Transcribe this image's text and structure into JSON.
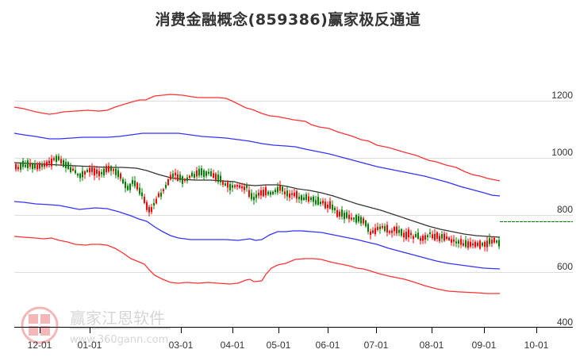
{
  "title": "消费金融概念(859386)赢家极反通道",
  "watermark": {
    "brand": "赢家江恩软件",
    "url": "www.360gann.com",
    "logo_chars": [
      "江",
      "赢",
      "恩",
      "家"
    ]
  },
  "colors": {
    "up_candle": "#ff0000",
    "down_candle": "#008000",
    "outer_band": "#ff3333",
    "inner_band": "#3333ff",
    "mid_line": "#333333",
    "last_price_line": "#008000",
    "grid": "#dddddd",
    "axis": "#000000"
  },
  "chart_data": {
    "type": "candlestick",
    "title": "消费金融概念(859386)赢家极反通道",
    "xlabel": "",
    "ylabel": "",
    "y_axis_position": "right",
    "ylim": [
      400,
      1250
    ],
    "yticks": [
      1200,
      1000,
      800,
      600,
      400
    ],
    "xticks": [
      "12-01",
      "01-01",
      "03-01",
      "04-01",
      "05-01",
      "06-01",
      "07-01",
      "08-01",
      "09-01",
      "10-01"
    ],
    "grid": true,
    "legend": null,
    "series": [
      {
        "name": "outer_upper_band",
        "color": "#ff3333",
        "x": [
          "11-10",
          "12-01",
          "12-20",
          "01-01",
          "01-20",
          "02-10",
          "02-20",
          "03-01",
          "03-15",
          "04-01",
          "04-15",
          "05-01",
          "05-15",
          "06-01",
          "06-15",
          "07-01",
          "07-15",
          "08-01",
          "08-15",
          "09-01",
          "09-15"
        ],
        "values": [
          1175,
          1160,
          1150,
          1160,
          1165,
          1195,
          1200,
          1220,
          1220,
          1210,
          1200,
          1150,
          1130,
          1100,
          1080,
          1060,
          1030,
          1000,
          985,
          960,
          945
        ]
      },
      {
        "name": "inner_upper_band",
        "color": "#3333ff",
        "x": [
          "11-10",
          "12-01",
          "12-20",
          "01-01",
          "01-20",
          "02-10",
          "02-20",
          "03-01",
          "03-15",
          "04-01",
          "04-15",
          "05-01",
          "05-15",
          "06-01",
          "06-15",
          "07-01",
          "07-15",
          "08-01",
          "08-15",
          "09-01",
          "09-15"
        ],
        "values": [
          1080,
          1065,
          1055,
          1060,
          1065,
          1065,
          1070,
          1078,
          1078,
          1065,
          1050,
          1025,
          1010,
          985,
          965,
          945,
          920,
          890,
          870,
          850,
          833
        ]
      },
      {
        "name": "middle_line",
        "color": "#333333",
        "x": [
          "11-10",
          "12-01",
          "12-20",
          "01-01",
          "01-20",
          "02-10",
          "02-20",
          "03-01",
          "03-15",
          "04-01",
          "04-15",
          "05-01",
          "05-15",
          "06-01",
          "06-15",
          "07-01",
          "07-15",
          "08-01",
          "08-15",
          "09-01",
          "09-15"
        ],
        "values": [
          980,
          970,
          962,
          960,
          958,
          955,
          945,
          925,
          920,
          918,
          905,
          910,
          900,
          880,
          860,
          840,
          815,
          790,
          775,
          757,
          750
        ]
      },
      {
        "name": "inner_lower_band",
        "color": "#3333ff",
        "x": [
          "11-10",
          "12-01",
          "12-20",
          "01-01",
          "01-20",
          "02-10",
          "02-20",
          "03-01",
          "03-15",
          "04-01",
          "04-15",
          "05-01",
          "05-15",
          "06-01",
          "06-15",
          "07-01",
          "07-15",
          "08-01",
          "08-15",
          "09-01",
          "09-15"
        ],
        "values": [
          840,
          830,
          818,
          815,
          800,
          750,
          720,
          705,
          703,
          700,
          702,
          735,
          740,
          735,
          715,
          700,
          675,
          650,
          642,
          636,
          632
        ]
      },
      {
        "name": "outer_lower_band",
        "color": "#ff3333",
        "x": [
          "11-10",
          "12-01",
          "12-20",
          "01-01",
          "01-20",
          "02-10",
          "02-20",
          "03-01",
          "03-15",
          "04-01",
          "04-15",
          "05-01",
          "05-15",
          "06-01",
          "06-15",
          "07-01",
          "07-15",
          "08-01",
          "08-15",
          "09-01",
          "09-15"
        ],
        "values": [
          715,
          710,
          690,
          692,
          665,
          600,
          540,
          510,
          510,
          505,
          505,
          565,
          600,
          600,
          585,
          565,
          530,
          495,
          475,
          473,
          470
        ]
      }
    ],
    "candles_approx_close": {
      "x": [
        "11-10",
        "11-20",
        "12-01",
        "12-10",
        "12-20",
        "01-01",
        "01-10",
        "01-20",
        "01-30",
        "02-05",
        "02-10",
        "02-15",
        "02-20",
        "02-25",
        "03-01",
        "03-10",
        "03-20",
        "04-01",
        "04-10",
        "04-20",
        "05-01",
        "05-10",
        "05-20",
        "06-01",
        "06-10",
        "06-20",
        "07-01",
        "07-10",
        "07-20",
        "08-01",
        "08-10",
        "08-20",
        "09-01",
        "09-10",
        "09-15"
      ],
      "values": [
        960,
        980,
        975,
        1010,
        975,
        965,
        955,
        950,
        960,
        920,
        880,
        830,
        800,
        860,
        930,
        940,
        950,
        920,
        900,
        880,
        860,
        895,
        870,
        845,
        830,
        790,
        760,
        745,
        740,
        735,
        725,
        715,
        700,
        700,
        720
      ]
    },
    "last_price": 705
  }
}
